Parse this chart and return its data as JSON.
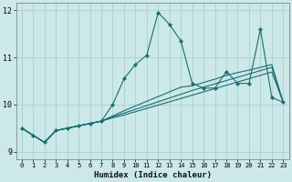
{
  "xlabel": "Humidex (Indice chaleur)",
  "ylabel": "",
  "bg_color": "#cce8e8",
  "line_color": "#1a6e6e",
  "grid_color": "#aacfcf",
  "xlim": [
    -0.5,
    23.5
  ],
  "ylim": [
    8.85,
    12.15
  ],
  "yticks": [
    9,
    10,
    11,
    12
  ],
  "xticks": [
    0,
    1,
    2,
    3,
    4,
    5,
    6,
    7,
    8,
    9,
    10,
    11,
    12,
    13,
    14,
    15,
    16,
    17,
    18,
    19,
    20,
    21,
    22,
    23
  ],
  "main": [
    9.5,
    9.35,
    9.2,
    9.45,
    9.5,
    9.55,
    9.6,
    9.65,
    10.0,
    10.55,
    10.85,
    11.05,
    11.95,
    11.7,
    11.35,
    10.45,
    10.35,
    10.35,
    10.7,
    10.45,
    10.45,
    11.6,
    10.15,
    10.05
  ],
  "line2": [
    9.5,
    9.35,
    9.2,
    9.45,
    9.5,
    9.55,
    9.6,
    9.65,
    9.72,
    9.78,
    9.85,
    9.92,
    9.99,
    10.06,
    10.13,
    10.2,
    10.27,
    10.34,
    10.41,
    10.48,
    10.55,
    10.62,
    10.69,
    10.05
  ],
  "line3": [
    9.5,
    9.35,
    9.2,
    9.45,
    9.5,
    9.55,
    9.6,
    9.65,
    9.74,
    9.82,
    9.9,
    9.98,
    10.06,
    10.14,
    10.22,
    10.3,
    10.37,
    10.44,
    10.51,
    10.58,
    10.65,
    10.72,
    10.79,
    10.05
  ],
  "line4": [
    9.5,
    9.35,
    9.2,
    9.45,
    9.5,
    9.55,
    9.6,
    9.65,
    9.76,
    9.87,
    9.97,
    10.07,
    10.17,
    10.27,
    10.37,
    10.4,
    10.47,
    10.54,
    10.62,
    10.68,
    10.73,
    10.79,
    10.85,
    10.05
  ]
}
